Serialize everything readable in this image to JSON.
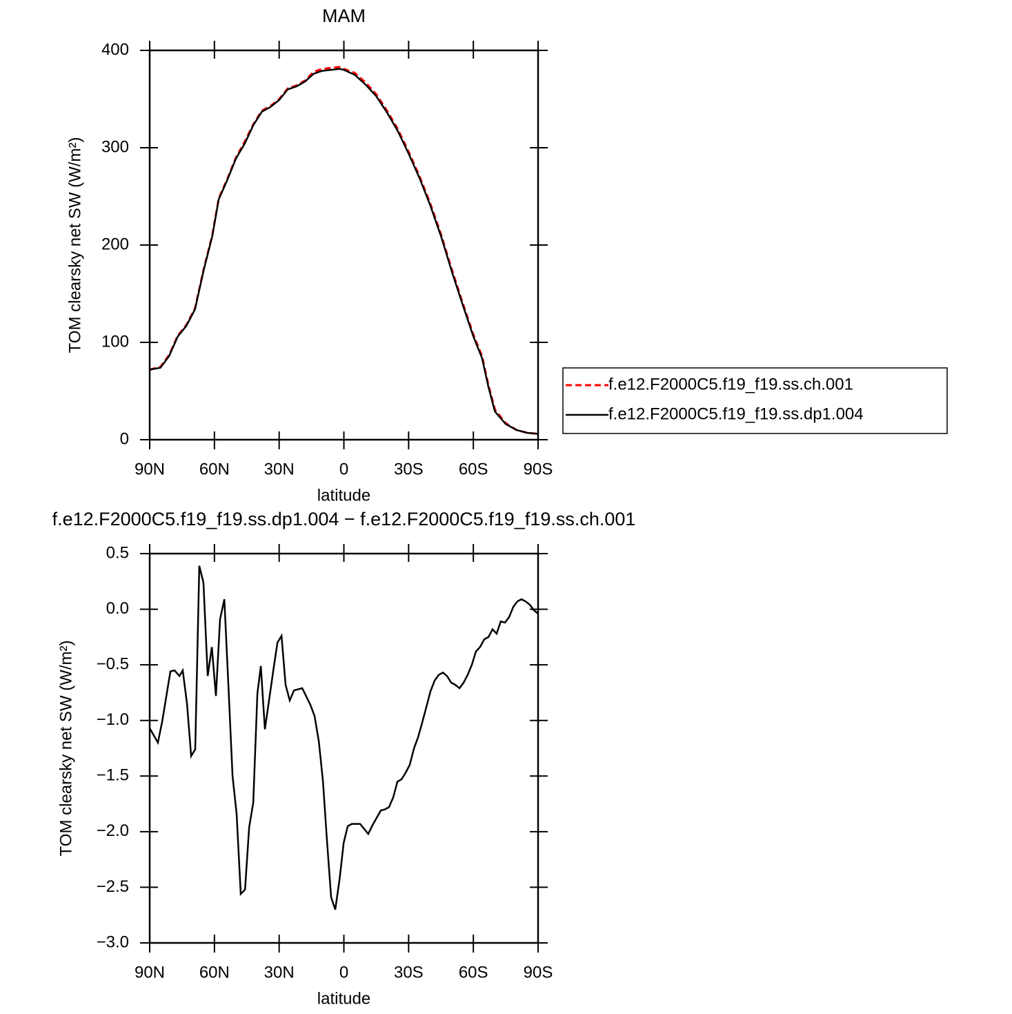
{
  "chart_data": [
    {
      "type": "line",
      "title": "MAM",
      "xlabel": "latitude",
      "ylabel": "TOM clearsky net SW (W/m²)",
      "xlim": [
        90,
        -90
      ],
      "ylim": [
        0,
        400
      ],
      "xticks": [
        {
          "value": 90,
          "label": "90N"
        },
        {
          "value": 60,
          "label": "60N"
        },
        {
          "value": 30,
          "label": "30N"
        },
        0,
        {
          "value": -30,
          "label": "30S"
        },
        {
          "value": -60,
          "label": "60S"
        },
        {
          "value": -90,
          "label": "90S"
        }
      ],
      "yticks": [
        0,
        100,
        200,
        300,
        400
      ],
      "legend": "outside-right",
      "x": [
        90,
        85,
        81,
        77,
        73,
        69,
        65,
        61,
        58,
        54,
        50,
        46,
        42,
        38,
        34,
        30,
        26,
        22,
        18,
        14,
        10,
        6,
        2,
        0,
        -5,
        -10,
        -15,
        -20,
        -25,
        -30,
        -35,
        -40,
        -45,
        -50,
        -55,
        -60,
        -64,
        -67,
        -70,
        -75,
        -80,
        -85,
        -90
      ],
      "series": [
        {
          "name": "f.e12.F2000C5.f19_f19.ss.ch.001",
          "color": "#ff0000",
          "dash": true,
          "values": [
            72,
            75,
            87,
            107,
            118,
            135,
            175,
            210,
            248,
            268,
            290,
            306,
            324,
            338,
            343,
            350,
            361,
            364,
            369,
            378,
            381,
            382,
            383,
            381,
            377,
            367,
            355,
            338,
            319,
            296,
            271,
            243,
            211,
            175,
            141,
            108,
            86,
            56,
            31,
            17,
            10,
            7,
            6
          ]
        },
        {
          "name": "f.e12.F2000C5.f19_f19.ss.dp1.004",
          "color": "#000000",
          "dash": false,
          "values": [
            72,
            74,
            86,
            106,
            117,
            134,
            174,
            209,
            247,
            267,
            289,
            304,
            323,
            337,
            342,
            349,
            360,
            363,
            368,
            376,
            379,
            380,
            381,
            380,
            375,
            365,
            353,
            336,
            317,
            294,
            269,
            241,
            209,
            173,
            139,
            106,
            84,
            54,
            29,
            16,
            10,
            7,
            6
          ]
        }
      ]
    },
    {
      "type": "line",
      "title": "f.e12.F2000C5.f19_f19.ss.dp1.004 − f.e12.F2000C5.f19_f19.ss.ch.001",
      "xlabel": "latitude",
      "ylabel": "TOM clearsky net SW (W/m²)",
      "xlim": [
        90,
        -90
      ],
      "ylim": [
        -3,
        0.5
      ],
      "xticks": [
        {
          "value": 90,
          "label": "90N"
        },
        {
          "value": 60,
          "label": "60N"
        },
        {
          "value": 30,
          "label": "30N"
        },
        0,
        {
          "value": -30,
          "label": "30S"
        },
        {
          "value": -60,
          "label": "60S"
        },
        {
          "value": -90,
          "label": "90S"
        }
      ],
      "yticks": [
        {
          "value": 0.5,
          "label": "0.5"
        },
        {
          "value": 0,
          "label": "0.0"
        },
        {
          "value": -0.5,
          "label": "−0.5"
        },
        {
          "value": -1,
          "label": "−1.0"
        },
        {
          "value": -1.5,
          "label": "−1.5"
        },
        {
          "value": -2,
          "label": "−2.0"
        },
        {
          "value": -2.5,
          "label": "−2.5"
        },
        {
          "value": -3,
          "label": "−3.0"
        }
      ],
      "x": [
        90,
        86.2,
        84.2,
        80.4,
        78.5,
        76.2,
        74.7,
        72.7,
        70.8,
        68.9,
        67,
        65.1,
        63.1,
        61.2,
        59.3,
        57.4,
        55.4,
        53.5,
        51.6,
        49.7,
        47.8,
        45.8,
        43.9,
        42,
        40.1,
        38.5,
        36.6,
        34.7,
        32.7,
        30.8,
        28.9,
        27,
        25.1,
        23.1,
        19.3,
        15.5,
        13.6,
        11.6,
        9.7,
        7.8,
        5.9,
        4,
        2,
        0.1,
        -1.8,
        -3.7,
        -7.5,
        -11.3,
        -13.3,
        -17.1,
        -19,
        -20.9,
        -22.9,
        -24.8,
        -26.7,
        -28.6,
        -30.5,
        -32.5,
        -34.4,
        -36.3,
        -38.2,
        -40.1,
        -42.1,
        -44,
        -45.9,
        -47.8,
        -49.7,
        -51.6,
        -53.6,
        -55.5,
        -57.4,
        -59.3,
        -61.2,
        -63.1,
        -65.1,
        -67,
        -68.9,
        -70.8,
        -72.7,
        -74.7,
        -76.6,
        -78.5,
        -80.4,
        -82.3,
        -84.2,
        -86.2,
        -88.1,
        -90
      ],
      "series": [
        {
          "color": "#000000",
          "dash": false,
          "values": [
            -1.07,
            -1.2,
            -1.01,
            -0.56,
            -0.55,
            -0.6,
            -0.55,
            -0.85,
            -1.32,
            -1.26,
            0.39,
            0.24,
            -0.6,
            -0.34,
            -0.78,
            -0.09,
            0.09,
            -0.7,
            -1.5,
            -1.84,
            -2.56,
            -2.52,
            -1.96,
            -1.74,
            -0.76,
            -0.51,
            -1.08,
            -0.82,
            -0.55,
            -0.3,
            -0.24,
            -0.68,
            -0.82,
            -0.73,
            -0.71,
            -0.86,
            -0.96,
            -1.19,
            -1.55,
            -2.09,
            -2.59,
            -2.7,
            -2.43,
            -2.1,
            -1.95,
            -1.93,
            -1.93,
            -2.02,
            -1.94,
            -1.81,
            -1.8,
            -1.78,
            -1.69,
            -1.55,
            -1.53,
            -1.47,
            -1.4,
            -1.25,
            -1.15,
            -1.02,
            -0.88,
            -0.74,
            -0.64,
            -0.59,
            -0.57,
            -0.6,
            -0.66,
            -0.68,
            -0.71,
            -0.66,
            -0.59,
            -0.5,
            -0.38,
            -0.34,
            -0.27,
            -0.25,
            -0.18,
            -0.22,
            -0.11,
            -0.12,
            -0.07,
            0.02,
            0.07,
            0.09,
            0.07,
            0.04,
            -0.01,
            -0.04
          ]
        }
      ]
    }
  ]
}
